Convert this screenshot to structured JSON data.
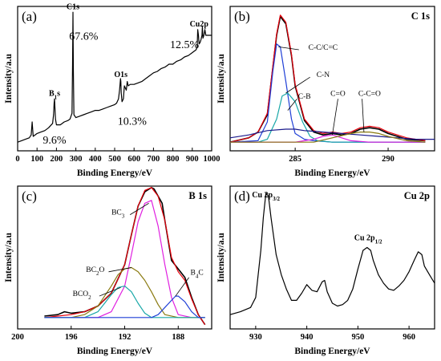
{
  "chart_data": [
    {
      "type": "line",
      "panel_label": "(a)",
      "title": "",
      "xlabel": "Binding Energy/eV",
      "ylabel": "Intensity/a.u",
      "xlim": [
        0,
        1000
      ],
      "x_ticks": [
        0,
        100,
        200,
        300,
        400,
        500,
        600,
        700,
        800,
        900,
        1000
      ],
      "x_tick_labels": [
        "0",
        "100",
        "200",
        "300",
        "400",
        "500",
        "600",
        "700",
        "800",
        "900",
        "1000"
      ],
      "ylim": [
        0,
        1
      ],
      "annotations": [
        {
          "text": "B1s",
          "x": 190,
          "y": 0.38
        },
        {
          "text": "9.6%",
          "x": 190,
          "y": 0.05
        },
        {
          "text": "C1s",
          "x": 285,
          "y": 0.98
        },
        {
          "text": "67.6%",
          "x": 340,
          "y": 0.77
        },
        {
          "text": "O1s",
          "x": 532,
          "y": 0.51
        },
        {
          "text": "10.3%",
          "x": 590,
          "y": 0.18
        },
        {
          "text": "Cu2p",
          "x": 935,
          "y": 0.86
        },
        {
          "text": "12.5%",
          "x": 860,
          "y": 0.71
        }
      ],
      "series": [
        {
          "x": [
            0,
            20,
            40,
            60,
            70,
            75,
            80,
            100,
            120,
            140,
            160,
            180,
            185,
            188,
            190,
            192,
            195,
            200,
            220,
            240,
            260,
            270,
            280,
            283,
            285,
            287,
            290,
            300,
            320,
            340,
            360,
            380,
            400,
            420,
            440,
            460,
            480,
            500,
            510,
            520,
            525,
            530,
            532,
            534,
            538,
            545,
            550,
            560,
            565,
            570,
            580,
            600,
            620,
            640,
            660,
            680,
            700,
            720,
            740,
            760,
            780,
            800,
            820,
            840,
            860,
            880,
            900,
            920,
            925,
            928,
            932,
            935,
            940,
            945,
            950,
            952,
            955,
            960,
            965,
            970,
            980,
            990,
            1000
          ],
          "y": [
            0.06,
            0.07,
            0.08,
            0.09,
            0.11,
            0.2,
            0.1,
            0.12,
            0.13,
            0.14,
            0.16,
            0.19,
            0.25,
            0.33,
            0.36,
            0.3,
            0.22,
            0.18,
            0.18,
            0.2,
            0.21,
            0.22,
            0.26,
            0.6,
            0.96,
            0.55,
            0.25,
            0.23,
            0.24,
            0.25,
            0.26,
            0.27,
            0.28,
            0.28,
            0.29,
            0.3,
            0.31,
            0.32,
            0.33,
            0.36,
            0.42,
            0.5,
            0.48,
            0.4,
            0.34,
            0.36,
            0.45,
            0.42,
            0.48,
            0.45,
            0.46,
            0.46,
            0.47,
            0.48,
            0.5,
            0.52,
            0.54,
            0.55,
            0.57,
            0.58,
            0.6,
            0.6,
            0.62,
            0.63,
            0.65,
            0.66,
            0.68,
            0.7,
            0.72,
            0.84,
            0.8,
            0.74,
            0.75,
            0.77,
            0.8,
            0.86,
            0.78,
            0.8,
            0.84,
            0.8,
            0.8,
            0.8,
            0.8
          ]
        }
      ]
    },
    {
      "type": "line",
      "panel_label": "(b)",
      "title": "C 1s",
      "xlabel": "Binding Energy/eV",
      "ylabel": "Intensity/a.u",
      "xlim": [
        281.5,
        292.5
      ],
      "x_ticks": [
        285,
        290
      ],
      "x_tick_labels": [
        "285",
        "290"
      ],
      "ylim": [
        0,
        1
      ],
      "annotations": [
        {
          "text": "C-C/C=C",
          "x": 286.5,
          "y": 0.7
        },
        {
          "text": "C-N",
          "x": 286.5,
          "y": 0.51
        },
        {
          "text": "C-B",
          "x": 285.5,
          "y": 0.36
        },
        {
          "text": "C=O",
          "x": 287.3,
          "y": 0.38
        },
        {
          "text": "C-C=O",
          "x": 289.0,
          "y": 0.38
        }
      ],
      "series": [
        {
          "name": "",
          "color": "#000000",
          "x": [
            281.5,
            282.5,
            283,
            283.5,
            284,
            284.2,
            284.5,
            284.8,
            285,
            285.5,
            286,
            286.5,
            287,
            287.5,
            288,
            288.5,
            289,
            289.5,
            290,
            291,
            292
          ],
          "y": [
            0.06,
            0.09,
            0.13,
            0.25,
            0.8,
            0.93,
            0.88,
            0.66,
            0.45,
            0.21,
            0.13,
            0.11,
            0.12,
            0.11,
            0.12,
            0.15,
            0.16,
            0.15,
            0.12,
            0.08,
            0.07
          ]
        },
        {
          "name": "",
          "color": "#e8000b",
          "x": [
            281.5,
            282.5,
            283,
            283.5,
            284,
            284.2,
            284.5,
            284.8,
            285,
            285.5,
            286,
            286.5,
            287,
            287.5,
            288,
            288.5,
            289,
            289.5,
            290,
            291,
            292
          ],
          "y": [
            0.06,
            0.09,
            0.13,
            0.26,
            0.81,
            0.94,
            0.89,
            0.67,
            0.46,
            0.22,
            0.14,
            0.12,
            0.13,
            0.12,
            0.13,
            0.16,
            0.17,
            0.16,
            0.13,
            0.09,
            0.07
          ]
        },
        {
          "name": "",
          "color": "#1f3fd6",
          "x": [
            281.5,
            283,
            283.5,
            283.8,
            284,
            284.2,
            284.5,
            284.8,
            285,
            285.5,
            286,
            287,
            288,
            289,
            290,
            291,
            292
          ],
          "y": [
            0.06,
            0.07,
            0.2,
            0.55,
            0.74,
            0.72,
            0.48,
            0.22,
            0.12,
            0.08,
            0.07,
            0.06,
            0.06,
            0.06,
            0.06,
            0.06,
            0.06
          ]
        },
        {
          "name": "",
          "color": "#17a7a7",
          "x": [
            281.5,
            283,
            283.5,
            284,
            284.3,
            284.6,
            285,
            285.4,
            285.8,
            286.2,
            287,
            288,
            289,
            290,
            291,
            292
          ],
          "y": [
            0.06,
            0.06,
            0.08,
            0.22,
            0.38,
            0.4,
            0.34,
            0.2,
            0.1,
            0.07,
            0.06,
            0.06,
            0.06,
            0.06,
            0.06,
            0.06
          ]
        },
        {
          "name": "",
          "color": "#1a1a8c",
          "x": [
            281.5,
            282.5,
            283.5,
            284.5,
            285,
            285.5,
            286.5,
            287.5,
            288.5,
            289.5,
            290.5,
            291.5,
            292.5
          ],
          "y": [
            0.09,
            0.11,
            0.14,
            0.15,
            0.15,
            0.14,
            0.13,
            0.12,
            0.11,
            0.1,
            0.09,
            0.08,
            0.08
          ]
        },
        {
          "name": "",
          "color": "#e020e0",
          "x": [
            281.5,
            285,
            286,
            286.5,
            287,
            287.5,
            288,
            289,
            292
          ],
          "y": [
            0.06,
            0.06,
            0.08,
            0.1,
            0.11,
            0.09,
            0.07,
            0.06,
            0.06
          ]
        },
        {
          "name": "",
          "color": "#8a7a10",
          "x": [
            281.5,
            286,
            287,
            288,
            288.5,
            289,
            289.5,
            290,
            291,
            292
          ],
          "y": [
            0.06,
            0.06,
            0.09,
            0.12,
            0.13,
            0.13,
            0.12,
            0.1,
            0.07,
            0.06
          ]
        }
      ]
    },
    {
      "type": "line",
      "panel_label": "(c)",
      "title": "B 1s",
      "xlabel": "Binding Energy/eV",
      "ylabel": "Intensity/a.u",
      "xlim": [
        200,
        185.5
      ],
      "x_ticks": [
        200,
        196,
        192,
        188
      ],
      "x_tick_labels": [
        "200",
        "196",
        "192",
        "188"
      ],
      "ylim": [
        0,
        1
      ],
      "annotations": [
        {
          "text": "BC3",
          "x": 192.5,
          "y": 0.8
        },
        {
          "text": "BC2O",
          "x": 194.2,
          "y": 0.4
        },
        {
          "text": "BCO2",
          "x": 195.2,
          "y": 0.23
        },
        {
          "text": "B4C",
          "x": 186.6,
          "y": 0.38
        }
      ],
      "series": [
        {
          "name": "",
          "color": "#000000",
          "x": [
            198,
            197,
            196.5,
            196,
            195,
            194,
            193,
            192,
            191.5,
            191,
            190.5,
            190,
            189.8,
            189.5,
            189.2,
            189,
            188.5,
            188,
            187.5,
            187,
            186.5,
            186
          ],
          "y": [
            0.09,
            0.1,
            0.12,
            0.11,
            0.12,
            0.16,
            0.25,
            0.45,
            0.66,
            0.86,
            0.96,
            0.99,
            0.98,
            0.93,
            0.88,
            0.76,
            0.48,
            0.42,
            0.36,
            0.22,
            0.1,
            0.03
          ]
        },
        {
          "name": "",
          "color": "#e8000b",
          "x": [
            198,
            197,
            196,
            195,
            194,
            193,
            192,
            191.5,
            191,
            190.5,
            190,
            189.5,
            189,
            188.5,
            188,
            187.5,
            187,
            186.5,
            186
          ],
          "y": [
            0.08,
            0.09,
            0.1,
            0.12,
            0.16,
            0.25,
            0.45,
            0.66,
            0.86,
            0.97,
            0.99,
            0.93,
            0.76,
            0.5,
            0.4,
            0.34,
            0.21,
            0.1,
            0.03
          ]
        },
        {
          "name": "",
          "color": "#e020e0",
          "x": [
            196,
            194,
            193,
            192,
            191.5,
            191,
            190.5,
            190,
            189.5,
            189,
            188.5,
            188,
            187,
            186
          ],
          "y": [
            0.08,
            0.08,
            0.12,
            0.3,
            0.52,
            0.75,
            0.88,
            0.9,
            0.72,
            0.45,
            0.22,
            0.1,
            0.08,
            0.08
          ]
        },
        {
          "name": "",
          "color": "#8a7a10",
          "x": [
            198,
            196,
            195,
            194,
            193,
            192.5,
            192,
            191.5,
            191,
            190.5,
            190,
            189.5,
            189,
            188,
            187,
            186
          ],
          "y": [
            0.08,
            0.08,
            0.1,
            0.16,
            0.3,
            0.38,
            0.42,
            0.43,
            0.4,
            0.34,
            0.26,
            0.17,
            0.1,
            0.08,
            0.08,
            0.08
          ]
        },
        {
          "name": "",
          "color": "#17a7a7",
          "x": [
            198,
            195,
            194,
            193.5,
            193,
            192.5,
            192,
            191.5,
            191,
            190.5,
            190,
            189,
            186
          ],
          "y": [
            0.08,
            0.08,
            0.12,
            0.18,
            0.24,
            0.29,
            0.3,
            0.26,
            0.18,
            0.11,
            0.08,
            0.08,
            0.08
          ]
        },
        {
          "name": "",
          "color": "#1f3fd6",
          "x": [
            198,
            191,
            190,
            189.5,
            189,
            188.5,
            188.2,
            188,
            187.5,
            187,
            186.5,
            186
          ],
          "y": [
            0.08,
            0.08,
            0.08,
            0.1,
            0.15,
            0.2,
            0.23,
            0.23,
            0.19,
            0.12,
            0.08,
            0.08
          ]
        }
      ]
    },
    {
      "type": "line",
      "panel_label": "(d)",
      "title": "Cu 2p",
      "xlabel": "Binding Energy/eV",
      "ylabel": "Intensity/a.u",
      "xlim": [
        925,
        965
      ],
      "x_ticks": [
        930,
        940,
        950,
        960
      ],
      "x_tick_labels": [
        "930",
        "940",
        "950",
        "960"
      ],
      "ylim": [
        0,
        1
      ],
      "annotations": [
        {
          "text": "Cu 2p3/2",
          "x": 932,
          "y": 0.92
        },
        {
          "text": "Cu 2p1/2",
          "x": 952,
          "y": 0.62
        }
      ],
      "series": [
        {
          "x": [
            925,
            927,
            929,
            930,
            931,
            931.5,
            932,
            932.5,
            933,
            934,
            935,
            936,
            937,
            938,
            939,
            940,
            941,
            942,
            943,
            943.5,
            944,
            945,
            946,
            947,
            948,
            949,
            950,
            951,
            951.8,
            952.5,
            953,
            954,
            955,
            956,
            957,
            958,
            959,
            960,
            961,
            961.8,
            962.5,
            963,
            964,
            965
          ],
          "y": [
            0.1,
            0.12,
            0.15,
            0.22,
            0.55,
            0.78,
            0.95,
            0.93,
            0.78,
            0.52,
            0.38,
            0.28,
            0.2,
            0.2,
            0.25,
            0.31,
            0.27,
            0.26,
            0.33,
            0.34,
            0.26,
            0.18,
            0.16,
            0.17,
            0.2,
            0.28,
            0.42,
            0.55,
            0.57,
            0.55,
            0.48,
            0.38,
            0.32,
            0.28,
            0.27,
            0.3,
            0.34,
            0.4,
            0.48,
            0.54,
            0.52,
            0.44,
            0.38,
            0.32
          ]
        }
      ]
    }
  ]
}
